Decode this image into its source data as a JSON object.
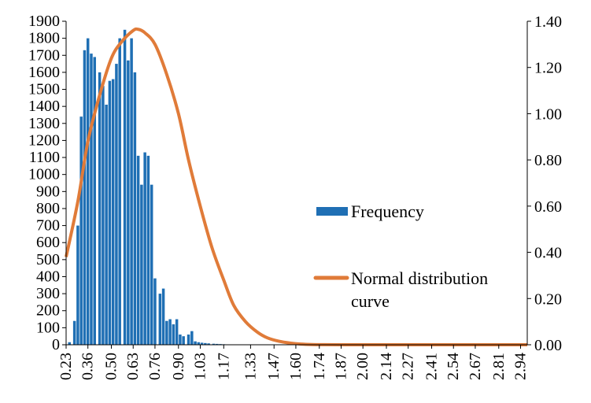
{
  "chart_data": {
    "type": "bar",
    "x_ticks": [
      "0.23",
      "0.36",
      "0.50",
      "0.63",
      "0.76",
      "0.90",
      "1.03",
      "1.17",
      "1.33",
      "1.47",
      "1.60",
      "1.74",
      "1.87",
      "2.00",
      "2.14",
      "2.27",
      "2.41",
      "2.54",
      "2.67",
      "2.81",
      "2.94"
    ],
    "y_left_ticks": [
      "0",
      "100",
      "200",
      "300",
      "400",
      "500",
      "600",
      "700",
      "800",
      "900",
      "1000",
      "1100",
      "1200",
      "1300",
      "1400",
      "1500",
      "1600",
      "1700",
      "1800",
      "1900"
    ],
    "y_right_ticks": [
      "0.00",
      "0.20",
      "0.40",
      "0.60",
      "0.80",
      "1.00",
      "1.20",
      "1.40"
    ],
    "ylim_left": [
      0,
      1900
    ],
    "ylim_right": [
      0,
      1.4
    ],
    "legend_position": "right",
    "series": [
      {
        "name": "Frequency",
        "type": "bar",
        "axis": "left",
        "color": "#1f6fb4",
        "x": [
          0.23,
          0.25,
          0.28,
          0.3,
          0.32,
          0.34,
          0.36,
          0.38,
          0.4,
          0.43,
          0.45,
          0.47,
          0.49,
          0.51,
          0.53,
          0.55,
          0.58,
          0.6,
          0.62,
          0.64,
          0.66,
          0.68,
          0.7,
          0.72,
          0.74,
          0.76,
          0.79,
          0.81,
          0.83,
          0.85,
          0.87,
          0.89,
          0.91,
          0.93,
          0.96,
          0.98,
          1.0,
          1.02,
          1.04,
          1.06,
          1.08,
          1.11,
          1.13,
          1.15,
          1.17,
          1.19,
          1.21,
          1.23,
          1.26,
          1.28,
          1.3,
          1.32,
          1.34,
          1.36,
          1.38,
          1.4,
          1.43,
          1.45,
          1.47,
          1.49,
          1.51,
          1.53,
          1.55,
          1.58,
          1.6,
          1.62,
          1.64,
          1.66,
          1.68,
          1.7,
          1.72,
          1.75,
          1.77,
          1.79,
          1.81,
          1.83,
          1.85,
          1.87,
          1.89,
          1.92,
          1.94
        ],
        "values": [
          0,
          15,
          140,
          700,
          1340,
          1730,
          1800,
          1710,
          1690,
          1600,
          1520,
          1410,
          1550,
          1560,
          1650,
          1800,
          1850,
          1670,
          1800,
          1600,
          1110,
          940,
          1130,
          1110,
          940,
          390,
          300,
          330,
          140,
          150,
          120,
          150,
          60,
          50,
          60,
          80,
          20,
          15,
          12,
          10,
          8,
          6,
          5,
          4,
          3,
          2,
          2,
          1,
          1,
          1,
          1,
          1,
          0,
          0,
          0,
          0,
          0,
          0,
          0,
          0,
          0,
          0,
          0,
          0,
          0,
          0,
          0,
          0,
          0,
          0,
          0,
          0,
          0,
          0,
          0,
          0,
          0,
          0,
          0,
          0,
          0
        ]
      },
      {
        "name": "Normal distribution curve",
        "type": "line",
        "axis": "right",
        "color": "#e07b39",
        "x": [
          0.23,
          0.3,
          0.36,
          0.43,
          0.5,
          0.56,
          0.63,
          0.66,
          0.7,
          0.76,
          0.83,
          0.9,
          0.96,
          1.03,
          1.1,
          1.17,
          1.23,
          1.3,
          1.37,
          1.43,
          1.5,
          1.57,
          1.63,
          1.7,
          1.77,
          1.87,
          2.0,
          2.2,
          2.5,
          2.8,
          2.98
        ],
        "values": [
          0.38,
          0.62,
          0.88,
          1.08,
          1.24,
          1.31,
          1.36,
          1.365,
          1.35,
          1.3,
          1.17,
          1.0,
          0.8,
          0.6,
          0.42,
          0.28,
          0.17,
          0.1,
          0.055,
          0.03,
          0.015,
          0.007,
          0.003,
          0.001,
          0.0005,
          0.0002,
          0,
          0,
          0,
          0,
          0
        ]
      }
    ]
  }
}
